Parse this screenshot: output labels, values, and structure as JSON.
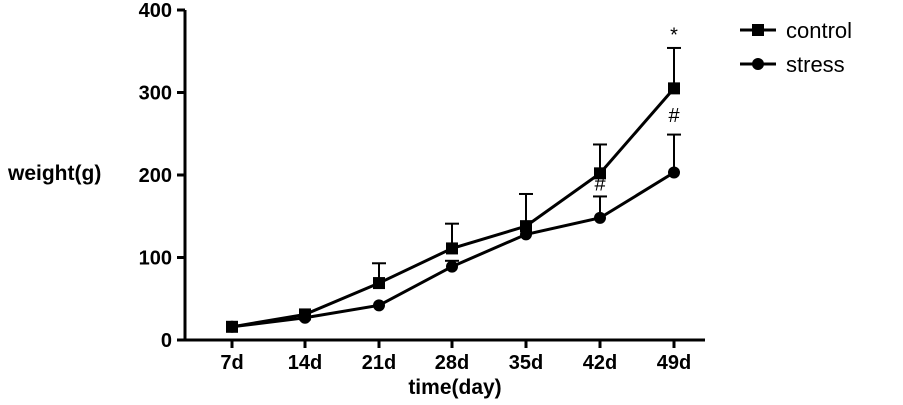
{
  "chart_data": {
    "type": "line",
    "title": "",
    "xlabel": "time(day)",
    "ylabel": "weight(g)",
    "categories": [
      "7d",
      "14d",
      "21d",
      "28d",
      "35d",
      "42d",
      "49d"
    ],
    "ylim": [
      0,
      400
    ],
    "yticks": [
      "0",
      "100",
      "200",
      "300",
      "400"
    ],
    "grid": false,
    "legend_position": "top-right",
    "series": [
      {
        "name": "control",
        "marker": "square",
        "values": [
          16,
          31,
          69,
          111,
          138,
          202,
          305
        ],
        "error_upper": [
          16,
          31,
          93,
          141,
          177,
          237,
          354
        ]
      },
      {
        "name": "stress",
        "marker": "circle",
        "values": [
          16,
          27,
          42,
          89,
          128,
          148,
          203
        ],
        "error_upper": [
          16,
          27,
          42,
          96,
          128,
          174,
          249
        ]
      }
    ],
    "annotations": [
      {
        "text": "*",
        "category": "49d",
        "value": 362
      },
      {
        "text": "#",
        "category": "49d",
        "value": 264
      },
      {
        "text": "#",
        "category": "42d",
        "value": 181
      }
    ]
  }
}
